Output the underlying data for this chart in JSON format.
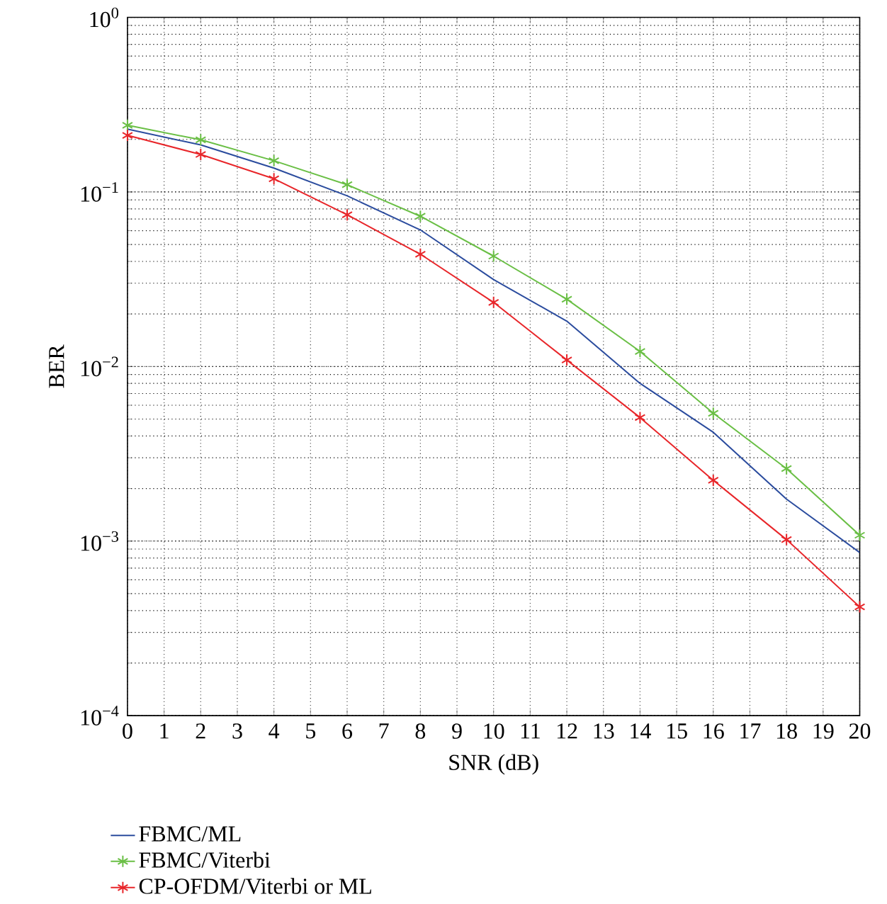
{
  "chart_data": {
    "type": "line",
    "xlabel": "SNR (dB)",
    "ylabel": "BER",
    "x": [
      0,
      2,
      4,
      6,
      8,
      10,
      12,
      14,
      16,
      18,
      20
    ],
    "series": [
      {
        "name": "FBMC/ML",
        "color": "#2b4c9e",
        "marker": "none",
        "values": [
          0.229,
          0.186,
          0.137,
          0.095,
          0.0606,
          0.0315,
          0.0182,
          0.008,
          0.0042,
          0.00174,
          0.00086
        ]
      },
      {
        "name": "FBMC/Viterbi",
        "color": "#6abf45",
        "marker": "cross",
        "values": [
          0.241,
          0.199,
          0.151,
          0.11,
          0.0726,
          0.0429,
          0.0243,
          0.0122,
          0.0054,
          0.0026,
          0.00108
        ]
      },
      {
        "name": "CP-OFDM/Viterbi or ML",
        "color": "#e8262a",
        "marker": "cross",
        "values": [
          0.211,
          0.164,
          0.119,
          0.074,
          0.044,
          0.0233,
          0.0109,
          0.0051,
          0.00223,
          0.00102,
          0.00042
        ]
      }
    ],
    "xlim": [
      0,
      20
    ],
    "xticks": [
      0,
      1,
      2,
      3,
      4,
      5,
      6,
      7,
      8,
      9,
      10,
      11,
      12,
      13,
      14,
      15,
      16,
      17,
      18,
      19,
      20
    ],
    "ylim": [
      0.0001,
      1
    ],
    "yticks": [
      {
        "value": 0.0001,
        "label": "10$^{−4}$"
      },
      {
        "value": 0.001,
        "label": "10$^{−3}$"
      },
      {
        "value": 0.01,
        "label": "10$^{−2}$"
      },
      {
        "value": 0.1,
        "label": "10$^{−1}$"
      },
      {
        "value": 1,
        "label": "10$^{0}$"
      }
    ],
    "log": "y",
    "grid": true,
    "legend": "bottom",
    "line_style": "solid"
  }
}
